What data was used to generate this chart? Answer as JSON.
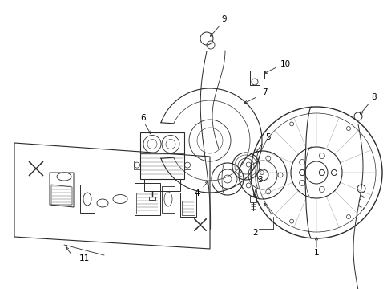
{
  "bg_color": "#ffffff",
  "line_color": "#2a2a2a",
  "label_color": "#000000",
  "fig_width": 4.89,
  "fig_height": 3.6,
  "dpi": 100,
  "xlim": [
    0,
    489
  ],
  "ylim": [
    0,
    360
  ]
}
